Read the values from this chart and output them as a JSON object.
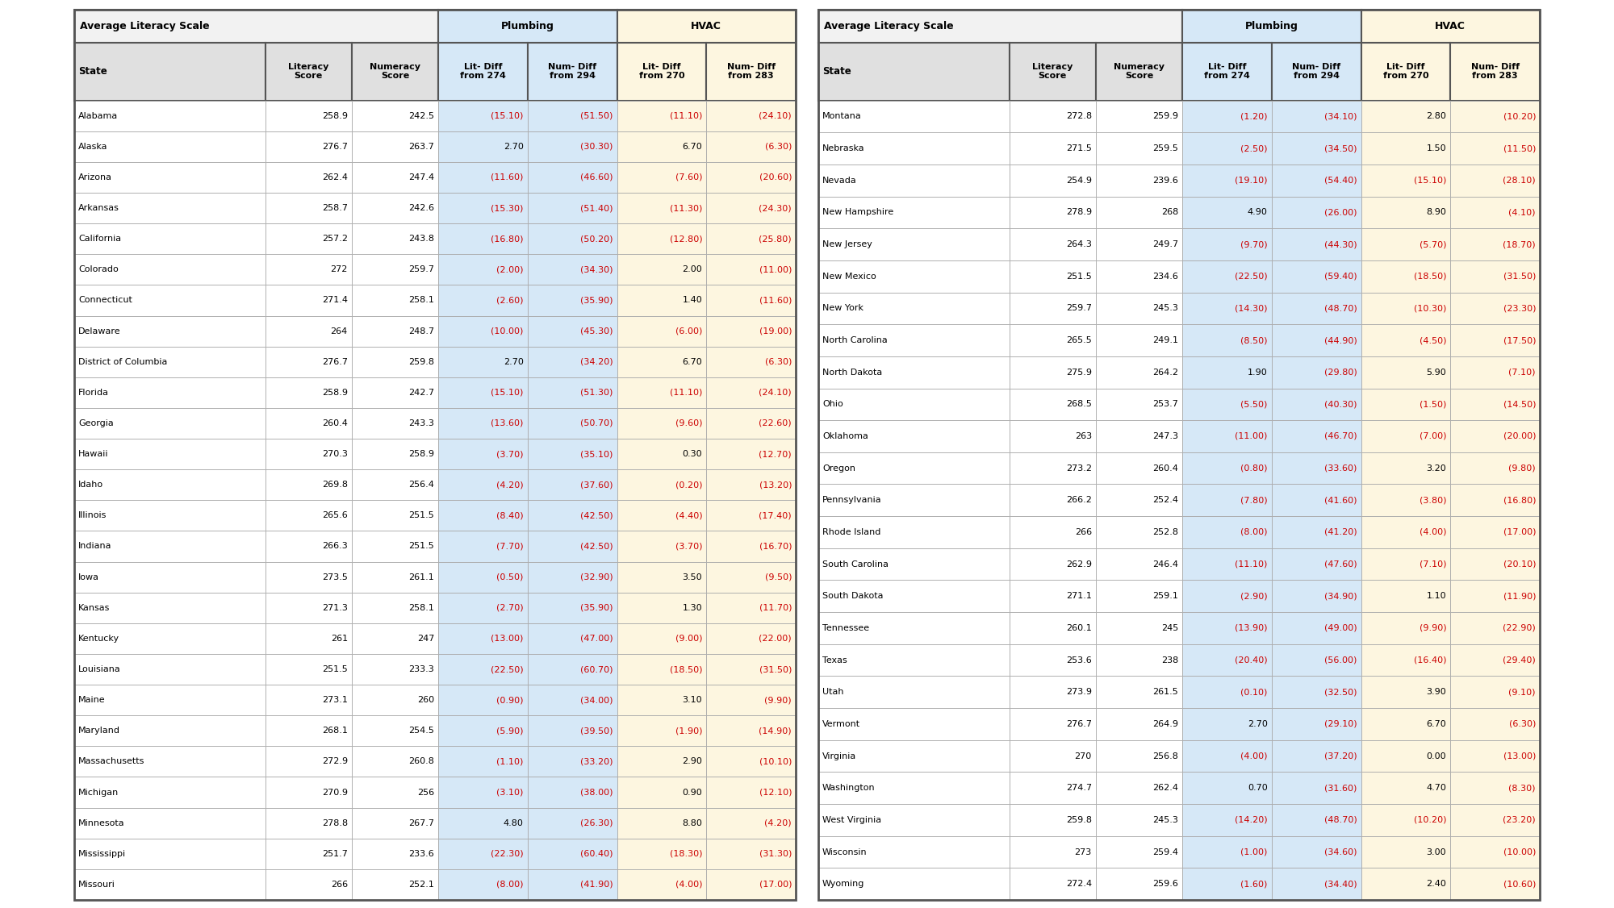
{
  "left_table": {
    "col_headers": [
      "State",
      "Literacy\nScore",
      "Numeracy\nScore",
      "Lit- Diff\nfrom 274",
      "Num- Diff\nfrom 294",
      "Lit- Diff\nfrom 270",
      "Num- Diff\nfrom 283"
    ],
    "rows": [
      [
        "Alabama",
        "258.9",
        "242.5",
        "(15.10)",
        "(51.50)",
        "(11.10)",
        "(24.10)"
      ],
      [
        "Alaska",
        "276.7",
        "263.7",
        "2.70",
        "(30.30)",
        "6.70",
        "(6.30)"
      ],
      [
        "Arizona",
        "262.4",
        "247.4",
        "(11.60)",
        "(46.60)",
        "(7.60)",
        "(20.60)"
      ],
      [
        "Arkansas",
        "258.7",
        "242.6",
        "(15.30)",
        "(51.40)",
        "(11.30)",
        "(24.30)"
      ],
      [
        "California",
        "257.2",
        "243.8",
        "(16.80)",
        "(50.20)",
        "(12.80)",
        "(25.80)"
      ],
      [
        "Colorado",
        "272",
        "259.7",
        "(2.00)",
        "(34.30)",
        "2.00",
        "(11.00)"
      ],
      [
        "Connecticut",
        "271.4",
        "258.1",
        "(2.60)",
        "(35.90)",
        "1.40",
        "(11.60)"
      ],
      [
        "Delaware",
        "264",
        "248.7",
        "(10.00)",
        "(45.30)",
        "(6.00)",
        "(19.00)"
      ],
      [
        "District of Columbia",
        "276.7",
        "259.8",
        "2.70",
        "(34.20)",
        "6.70",
        "(6.30)"
      ],
      [
        "Florida",
        "258.9",
        "242.7",
        "(15.10)",
        "(51.30)",
        "(11.10)",
        "(24.10)"
      ],
      [
        "Georgia",
        "260.4",
        "243.3",
        "(13.60)",
        "(50.70)",
        "(9.60)",
        "(22.60)"
      ],
      [
        "Hawaii",
        "270.3",
        "258.9",
        "(3.70)",
        "(35.10)",
        "0.30",
        "(12.70)"
      ],
      [
        "Idaho",
        "269.8",
        "256.4",
        "(4.20)",
        "(37.60)",
        "(0.20)",
        "(13.20)"
      ],
      [
        "Illinois",
        "265.6",
        "251.5",
        "(8.40)",
        "(42.50)",
        "(4.40)",
        "(17.40)"
      ],
      [
        "Indiana",
        "266.3",
        "251.5",
        "(7.70)",
        "(42.50)",
        "(3.70)",
        "(16.70)"
      ],
      [
        "Iowa",
        "273.5",
        "261.1",
        "(0.50)",
        "(32.90)",
        "3.50",
        "(9.50)"
      ],
      [
        "Kansas",
        "271.3",
        "258.1",
        "(2.70)",
        "(35.90)",
        "1.30",
        "(11.70)"
      ],
      [
        "Kentucky",
        "261",
        "247",
        "(13.00)",
        "(47.00)",
        "(9.00)",
        "(22.00)"
      ],
      [
        "Louisiana",
        "251.5",
        "233.3",
        "(22.50)",
        "(60.70)",
        "(18.50)",
        "(31.50)"
      ],
      [
        "Maine",
        "273.1",
        "260",
        "(0.90)",
        "(34.00)",
        "3.10",
        "(9.90)"
      ],
      [
        "Maryland",
        "268.1",
        "254.5",
        "(5.90)",
        "(39.50)",
        "(1.90)",
        "(14.90)"
      ],
      [
        "Massachusetts",
        "272.9",
        "260.8",
        "(1.10)",
        "(33.20)",
        "2.90",
        "(10.10)"
      ],
      [
        "Michigan",
        "270.9",
        "256",
        "(3.10)",
        "(38.00)",
        "0.90",
        "(12.10)"
      ],
      [
        "Minnesota",
        "278.8",
        "267.7",
        "4.80",
        "(26.30)",
        "8.80",
        "(4.20)"
      ],
      [
        "Mississippi",
        "251.7",
        "233.6",
        "(22.30)",
        "(60.40)",
        "(18.30)",
        "(31.30)"
      ],
      [
        "Missouri",
        "266",
        "252.1",
        "(8.00)",
        "(41.90)",
        "(4.00)",
        "(17.00)"
      ]
    ]
  },
  "right_table": {
    "col_headers": [
      "State",
      "Literacy\nScore",
      "Numeracy\nScore",
      "Lit- Diff\nfrom 274",
      "Num- Diff\nfrom 294",
      "Lit- Diff\nfrom 270",
      "Num- Diff\nfrom 283"
    ],
    "rows": [
      [
        "Montana",
        "272.8",
        "259.9",
        "(1.20)",
        "(34.10)",
        "2.80",
        "(10.20)"
      ],
      [
        "Nebraska",
        "271.5",
        "259.5",
        "(2.50)",
        "(34.50)",
        "1.50",
        "(11.50)"
      ],
      [
        "Nevada",
        "254.9",
        "239.6",
        "(19.10)",
        "(54.40)",
        "(15.10)",
        "(28.10)"
      ],
      [
        "New Hampshire",
        "278.9",
        "268",
        "4.90",
        "(26.00)",
        "8.90",
        "(4.10)"
      ],
      [
        "New Jersey",
        "264.3",
        "249.7",
        "(9.70)",
        "(44.30)",
        "(5.70)",
        "(18.70)"
      ],
      [
        "New Mexico",
        "251.5",
        "234.6",
        "(22.50)",
        "(59.40)",
        "(18.50)",
        "(31.50)"
      ],
      [
        "New York",
        "259.7",
        "245.3",
        "(14.30)",
        "(48.70)",
        "(10.30)",
        "(23.30)"
      ],
      [
        "North Carolina",
        "265.5",
        "249.1",
        "(8.50)",
        "(44.90)",
        "(4.50)",
        "(17.50)"
      ],
      [
        "North Dakota",
        "275.9",
        "264.2",
        "1.90",
        "(29.80)",
        "5.90",
        "(7.10)"
      ],
      [
        "Ohio",
        "268.5",
        "253.7",
        "(5.50)",
        "(40.30)",
        "(1.50)",
        "(14.50)"
      ],
      [
        "Oklahoma",
        "263",
        "247.3",
        "(11.00)",
        "(46.70)",
        "(7.00)",
        "(20.00)"
      ],
      [
        "Oregon",
        "273.2",
        "260.4",
        "(0.80)",
        "(33.60)",
        "3.20",
        "(9.80)"
      ],
      [
        "Pennsylvania",
        "266.2",
        "252.4",
        "(7.80)",
        "(41.60)",
        "(3.80)",
        "(16.80)"
      ],
      [
        "Rhode Island",
        "266",
        "252.8",
        "(8.00)",
        "(41.20)",
        "(4.00)",
        "(17.00)"
      ],
      [
        "South Carolina",
        "262.9",
        "246.4",
        "(11.10)",
        "(47.60)",
        "(7.10)",
        "(20.10)"
      ],
      [
        "South Dakota",
        "271.1",
        "259.1",
        "(2.90)",
        "(34.90)",
        "1.10",
        "(11.90)"
      ],
      [
        "Tennessee",
        "260.1",
        "245",
        "(13.90)",
        "(49.00)",
        "(9.90)",
        "(22.90)"
      ],
      [
        "Texas",
        "253.6",
        "238",
        "(20.40)",
        "(56.00)",
        "(16.40)",
        "(29.40)"
      ],
      [
        "Utah",
        "273.9",
        "261.5",
        "(0.10)",
        "(32.50)",
        "3.90",
        "(9.10)"
      ],
      [
        "Vermont",
        "276.7",
        "264.9",
        "2.70",
        "(29.10)",
        "6.70",
        "(6.30)"
      ],
      [
        "Virginia",
        "270",
        "256.8",
        "(4.00)",
        "(37.20)",
        "0.00",
        "(13.00)"
      ],
      [
        "Washington",
        "274.7",
        "262.4",
        "0.70",
        "(31.60)",
        "4.70",
        "(8.30)"
      ],
      [
        "West Virginia",
        "259.8",
        "245.3",
        "(14.20)",
        "(48.70)",
        "(10.20)",
        "(23.20)"
      ],
      [
        "Wisconsin",
        "273",
        "259.4",
        "(1.00)",
        "(34.60)",
        "3.00",
        "(10.00)"
      ],
      [
        "Wyoming",
        "272.4",
        "259.6",
        "(1.60)",
        "(34.40)",
        "2.40",
        "(10.60)"
      ]
    ]
  },
  "colors": {
    "header_main_bg": "#f2f2f2",
    "header_plumbing_bg": "#d6e8f7",
    "header_hvac_bg": "#fdf6e0",
    "col_header_state_bg": "#e0e0e0",
    "col_header_lit_num_bg": "#e0e0e0",
    "col_header_plumbing_bg": "#d6e8f7",
    "col_header_hvac_bg": "#fdf6e0",
    "cell_state_bg": "#ffffff",
    "cell_lit_num_bg": "#ffffff",
    "cell_plumbing_bg": "#d6e8f7",
    "cell_hvac_bg": "#fdf6e0",
    "negative_text": "#cc0000",
    "positive_text": "#000000",
    "border_outer": "#555555",
    "border_inner": "#aaaaaa"
  },
  "fig_width": 20.0,
  "fig_height": 11.26,
  "dpi": 100
}
